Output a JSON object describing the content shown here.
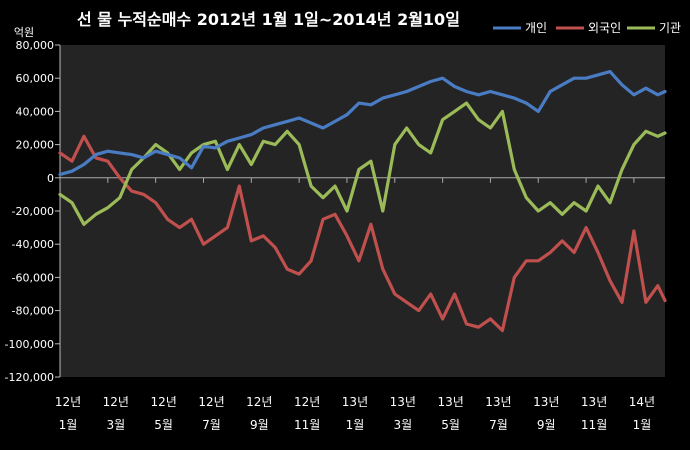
{
  "chart_data": {
    "type": "line",
    "title": "선 물 누적순매수 2012년 1월 1일~2014년 2월10일",
    "ylabel": "억원",
    "ylim": [
      -120000,
      80000
    ],
    "yticks": [
      80000,
      60000,
      40000,
      20000,
      0,
      -20000,
      -40000,
      -60000,
      -80000,
      -100000,
      -120000
    ],
    "ytick_labels": [
      "80,000",
      "60,000",
      "40,000",
      "20,000",
      "0",
      "-20,000",
      "-40,000",
      "-60,000",
      "-80,000",
      "-100,000",
      "-120,000"
    ],
    "xlim": [
      0,
      25.3
    ],
    "x_tick_positions": [
      0,
      2,
      4,
      6,
      8,
      10,
      12,
      14,
      16,
      18,
      20,
      22,
      24
    ],
    "x_tick_labels": [
      [
        "12년",
        "1월"
      ],
      [
        "12년",
        "3월"
      ],
      [
        "12년",
        "5월"
      ],
      [
        "12년",
        "7월"
      ],
      [
        "12년",
        "9월"
      ],
      [
        "12년",
        "11월"
      ],
      [
        "13년",
        "1월"
      ],
      [
        "13년",
        "3월"
      ],
      [
        "13년",
        "5월"
      ],
      [
        "13년",
        "7월"
      ],
      [
        "13년",
        "9월"
      ],
      [
        "13년",
        "11월"
      ],
      [
        "14년",
        "1월"
      ]
    ],
    "grid": false,
    "legend_position": "top-right",
    "x": [
      0,
      0.5,
      1,
      1.5,
      2,
      2.5,
      3,
      3.5,
      4,
      4.5,
      5,
      5.5,
      6,
      6.5,
      7,
      7.5,
      8,
      8.5,
      9,
      9.5,
      10,
      10.5,
      11,
      11.5,
      12,
      12.5,
      13,
      13.5,
      14,
      14.5,
      15,
      15.5,
      16,
      16.5,
      17,
      17.5,
      18,
      18.5,
      19,
      19.5,
      20,
      20.5,
      21,
      21.5,
      22,
      22.5,
      23,
      23.5,
      24,
      24.5,
      25,
      25.3
    ],
    "series": [
      {
        "name": "개인",
        "color": "#4a7cc4",
        "values": [
          2000,
          4000,
          8000,
          14000,
          16000,
          15000,
          14000,
          12000,
          16000,
          14000,
          12000,
          6000,
          19000,
          18000,
          22000,
          24000,
          26000,
          30000,
          32000,
          34000,
          36000,
          33000,
          30000,
          34000,
          38000,
          45000,
          44000,
          48000,
          50000,
          52000,
          55000,
          58000,
          60000,
          55000,
          52000,
          50000,
          52000,
          50000,
          48000,
          45000,
          40000,
          52000,
          56000,
          60000,
          60000,
          62000,
          64000,
          56000,
          50000,
          54000,
          50000,
          52000
        ]
      },
      {
        "name": "외국인",
        "color": "#c0504d",
        "values": [
          15000,
          10000,
          25000,
          12000,
          10000,
          0,
          -8000,
          -10000,
          -15000,
          -25000,
          -30000,
          -25000,
          -40000,
          -35000,
          -30000,
          -5000,
          -38000,
          -35000,
          -42000,
          -55000,
          -58000,
          -50000,
          -25000,
          -22000,
          -35000,
          -50000,
          -28000,
          -55000,
          -70000,
          -75000,
          -80000,
          -70000,
          -85000,
          -70000,
          -88000,
          -90000,
          -85000,
          -92000,
          -60000,
          -50000,
          -50000,
          -45000,
          -38000,
          -45000,
          -30000,
          -45000,
          -62000,
          -75000,
          -32000,
          -75000,
          -65000,
          -74000
        ]
      },
      {
        "name": "기관",
        "color": "#9bbb59",
        "values": [
          -10000,
          -15000,
          -28000,
          -22000,
          -18000,
          -12000,
          5000,
          12000,
          20000,
          15000,
          5000,
          15000,
          20000,
          22000,
          5000,
          20000,
          8000,
          22000,
          20000,
          28000,
          20000,
          -5000,
          -12000,
          -5000,
          -20000,
          5000,
          10000,
          -20000,
          20000,
          30000,
          20000,
          15000,
          35000,
          40000,
          45000,
          35000,
          30000,
          40000,
          5000,
          -12000,
          -20000,
          -15000,
          -22000,
          -15000,
          -20000,
          -5000,
          -15000,
          5000,
          20000,
          28000,
          25000,
          27000
        ]
      }
    ]
  }
}
